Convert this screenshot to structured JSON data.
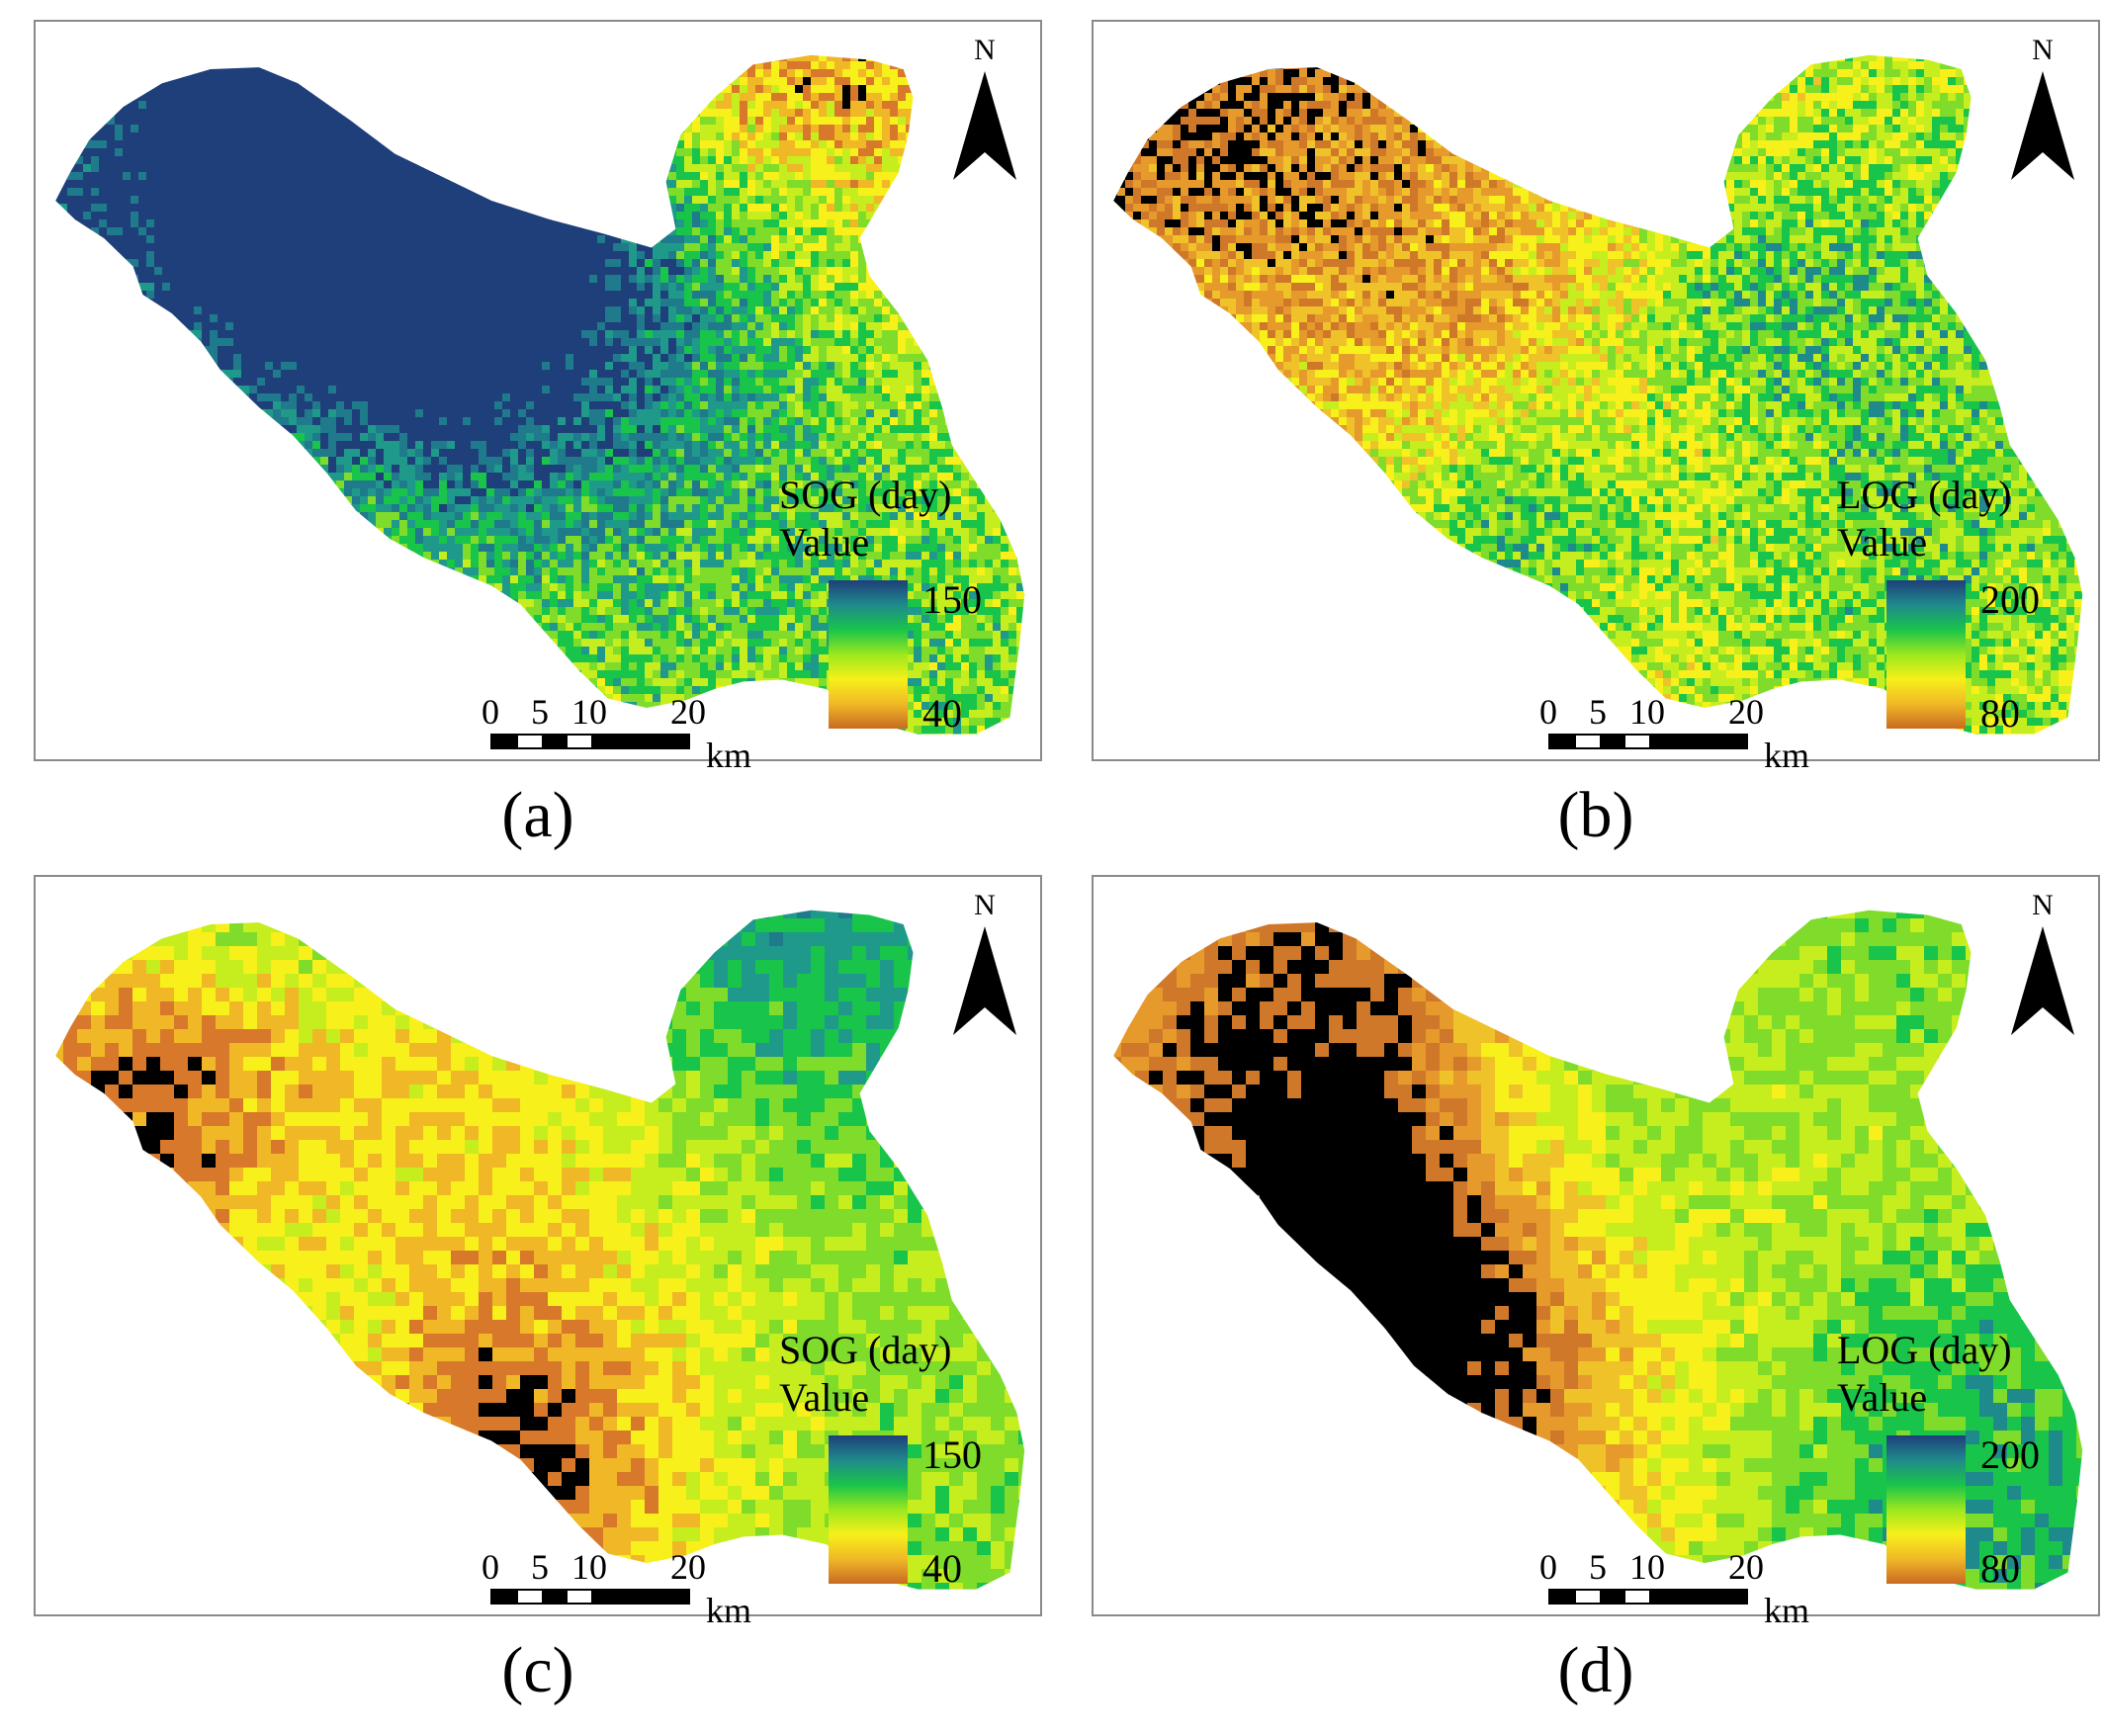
{
  "panels": [
    {
      "id": "a",
      "legend_title": "SOG (day)",
      "legend_sub": "Value",
      "max": "150",
      "min": "40",
      "caption": "(a)",
      "style": "fine",
      "theme": "sog"
    },
    {
      "id": "b",
      "legend_title": "LOG (day)",
      "legend_sub": "Value",
      "max": "200",
      "min": "80",
      "caption": "(b)",
      "style": "fine",
      "theme": "log"
    },
    {
      "id": "c",
      "legend_title": "SOG (day)",
      "legend_sub": "Value",
      "max": "150",
      "min": "40",
      "caption": "(c)",
      "style": "coarse",
      "theme": "sog"
    },
    {
      "id": "d",
      "legend_title": "LOG (day)",
      "legend_sub": "Value",
      "max": "200",
      "min": "80",
      "caption": "(d)",
      "style": "coarse",
      "theme": "log"
    }
  ],
  "north_label": "N",
  "scale": {
    "ticks": [
      "0",
      "5",
      "10",
      "20"
    ],
    "unit": "km"
  },
  "colors": {
    "ramp": [
      "#1f3f7a",
      "#1f8a8c",
      "#19c44a",
      "#9be81e",
      "#f7f01a",
      "#f0b826",
      "#c96a22"
    ],
    "border": "#8a8a8a"
  }
}
